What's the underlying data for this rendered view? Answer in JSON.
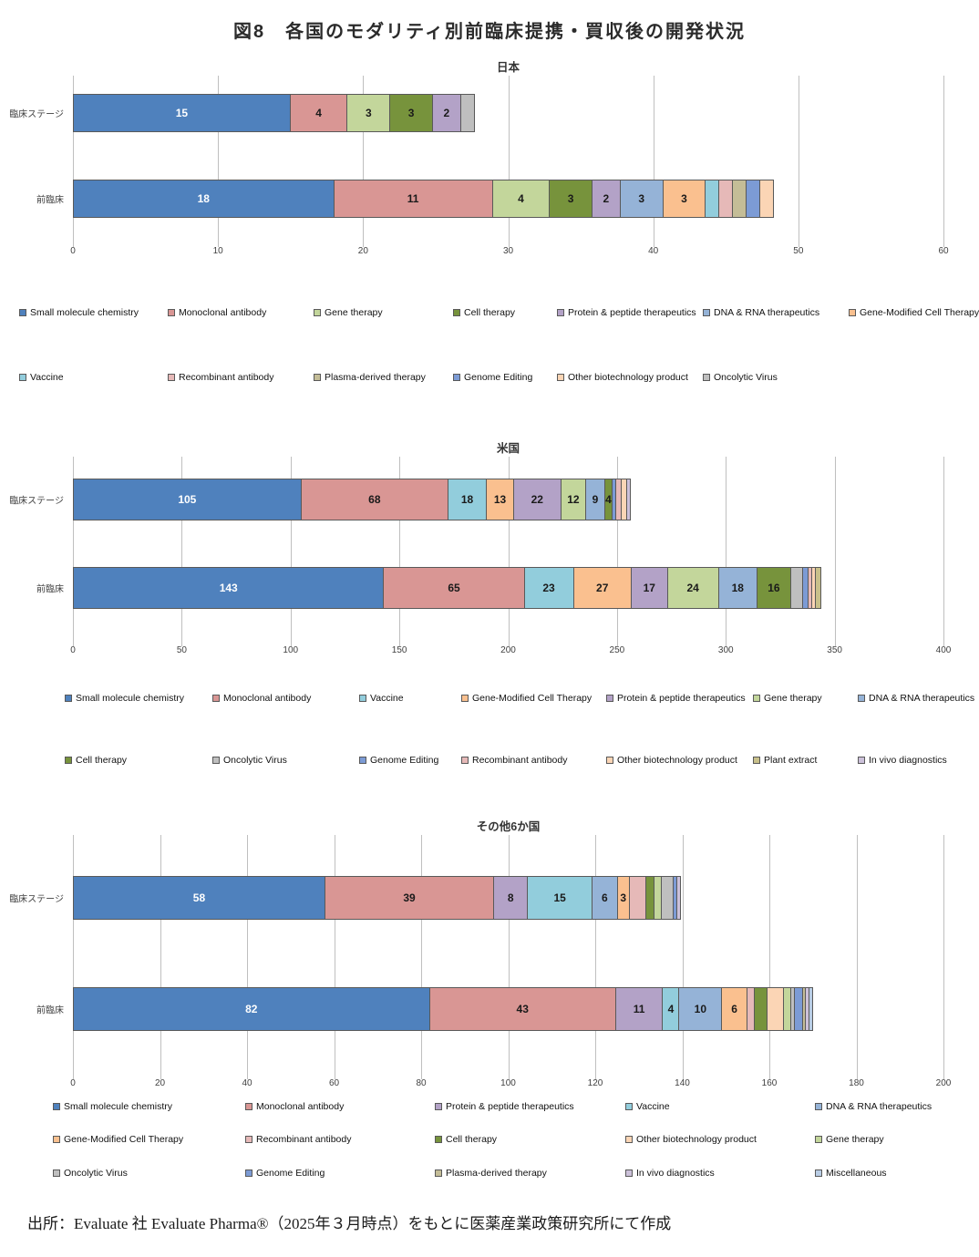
{
  "page": {
    "title": "図8　各国のモダリティ別前臨床提携・買収後の開発状況",
    "source_note": "出所：Evaluate 社 Evaluate Pharma®（2025年３月時点）をもとに医薬産業政策研究所にて作成"
  },
  "colors": {
    "Small molecule chemistry": "#4F81BD",
    "Monoclonal antibody": "#D99694",
    "Gene therapy": "#C3D69B",
    "Cell therapy": "#77933C",
    "Protein & peptide therapeutics": "#B3A2C7",
    "DNA & RNA therapeutics": "#95B3D7",
    "Gene-Modified Cell Therapy": "#FAC08F",
    "Vaccine": "#92CDDC",
    "Recombinant antibody": "#E6B9B8",
    "Plasma-derived therapy": "#C4BD97",
    "Genome Editing": "#7C9BD5",
    "Other biotechnology product": "#FBD5B5",
    "Oncolytic Virus": "#BFBFBF",
    "Plant extract": "#C8C08A",
    "In vivo diagnostics": "#CCC1DA",
    "Miscellaneous": "#B9CDE5"
  },
  "chart_data": [
    {
      "type": "bar",
      "subtype": "horizontal-stacked",
      "title": "日本",
      "axis": {
        "min": 0,
        "max": 60,
        "step": 10,
        "ticks": [
          0,
          10,
          20,
          30,
          40,
          50,
          60
        ]
      },
      "rows": [
        {
          "label": "臨床ステージ",
          "total": 28,
          "segments": [
            {
              "modality": "Small molecule chemistry",
              "value": 15,
              "labeled": true
            },
            {
              "modality": "Monoclonal antibody",
              "value": 4,
              "labeled": true
            },
            {
              "modality": "Gene therapy",
              "value": 3,
              "labeled": true
            },
            {
              "modality": "Cell therapy",
              "value": 3,
              "labeled": true
            },
            {
              "modality": "Protein & peptide therapeutics",
              "value": 2,
              "labeled": true
            },
            {
              "modality": "Oncolytic Virus",
              "value": 1,
              "labeled": false
            }
          ]
        },
        {
          "label": "前臨床",
          "total": 49,
          "segments": [
            {
              "modality": "Small molecule chemistry",
              "value": 18,
              "labeled": true
            },
            {
              "modality": "Monoclonal antibody",
              "value": 11,
              "labeled": true
            },
            {
              "modality": "Gene therapy",
              "value": 4,
              "labeled": true
            },
            {
              "modality": "Cell therapy",
              "value": 3,
              "labeled": true
            },
            {
              "modality": "Protein & peptide therapeutics",
              "value": 2,
              "labeled": true
            },
            {
              "modality": "DNA & RNA therapeutics",
              "value": 3,
              "labeled": true
            },
            {
              "modality": "Gene-Modified Cell Therapy",
              "value": 3,
              "labeled": true
            },
            {
              "modality": "Vaccine",
              "value": 1,
              "labeled": false
            },
            {
              "modality": "Recombinant antibody",
              "value": 1,
              "labeled": false
            },
            {
              "modality": "Plasma-derived therapy",
              "value": 1,
              "labeled": false
            },
            {
              "modality": "Genome Editing",
              "value": 1,
              "labeled": false
            },
            {
              "modality": "Other biotechnology product",
              "value": 1,
              "labeled": false
            }
          ]
        }
      ],
      "legend_rows": [
        [
          "Small molecule chemistry",
          "Monoclonal antibody",
          "Gene therapy",
          "Cell therapy",
          "Protein & peptide therapeutics",
          "DNA & RNA therapeutics",
          "Gene-Modified Cell Therapy"
        ],
        [
          "Vaccine",
          "Recombinant antibody",
          "Plasma-derived therapy",
          "Genome Editing",
          "Other biotechnology product",
          "Oncolytic Virus"
        ]
      ]
    },
    {
      "type": "bar",
      "subtype": "horizontal-stacked",
      "title": "米国",
      "axis": {
        "min": 0,
        "max": 400,
        "step": 50,
        "ticks": [
          0,
          50,
          100,
          150,
          200,
          250,
          300,
          350,
          400
        ]
      },
      "rows": [
        {
          "label": "臨床ステージ",
          "total": 261,
          "segments": [
            {
              "modality": "Small molecule chemistry",
              "value": 105,
              "labeled": true
            },
            {
              "modality": "Monoclonal antibody",
              "value": 68,
              "labeled": true
            },
            {
              "modality": "Vaccine",
              "value": 18,
              "labeled": true
            },
            {
              "modality": "Gene-Modified Cell Therapy",
              "value": 13,
              "labeled": true
            },
            {
              "modality": "Protein & peptide therapeutics",
              "value": 22,
              "labeled": true
            },
            {
              "modality": "Gene therapy",
              "value": 12,
              "labeled": true
            },
            {
              "modality": "DNA & RNA therapeutics",
              "value": 9,
              "labeled": true
            },
            {
              "modality": "Cell therapy",
              "value": 4,
              "labeled": true
            },
            {
              "modality": "Genome Editing",
              "value": 2,
              "labeled": false
            },
            {
              "modality": "Recombinant antibody",
              "value": 3,
              "labeled": false
            },
            {
              "modality": "Other biotechnology product",
              "value": 3,
              "labeled": false
            },
            {
              "modality": "In vivo diagnostics",
              "value": 2,
              "labeled": false
            }
          ]
        },
        {
          "label": "前臨床",
          "total": 349,
          "segments": [
            {
              "modality": "Small molecule chemistry",
              "value": 143,
              "labeled": true
            },
            {
              "modality": "Monoclonal antibody",
              "value": 65,
              "labeled": true
            },
            {
              "modality": "Vaccine",
              "value": 23,
              "labeled": true
            },
            {
              "modality": "Gene-Modified Cell Therapy",
              "value": 27,
              "labeled": true
            },
            {
              "modality": "Protein & peptide therapeutics",
              "value": 17,
              "labeled": true
            },
            {
              "modality": "Gene therapy",
              "value": 24,
              "labeled": true
            },
            {
              "modality": "DNA & RNA therapeutics",
              "value": 18,
              "labeled": true
            },
            {
              "modality": "Cell therapy",
              "value": 16,
              "labeled": true
            },
            {
              "modality": "Oncolytic Virus",
              "value": 6,
              "labeled": false
            },
            {
              "modality": "Genome Editing",
              "value": 3,
              "labeled": false
            },
            {
              "modality": "Recombinant antibody",
              "value": 2,
              "labeled": false
            },
            {
              "modality": "Other biotechnology product",
              "value": 2,
              "labeled": false
            },
            {
              "modality": "Plant extract",
              "value": 3,
              "labeled": false
            }
          ]
        }
      ],
      "legend_rows": [
        [
          "Small molecule chemistry",
          "Monoclonal antibody",
          "Vaccine",
          "Gene-Modified Cell Therapy",
          "Protein & peptide therapeutics",
          "Gene therapy",
          "DNA & RNA therapeutics"
        ],
        [
          "Cell therapy",
          "Oncolytic Virus",
          "Genome Editing",
          "Recombinant antibody",
          "Other biotechnology product",
          "Plant extract",
          "In vivo diagnostics"
        ]
      ]
    },
    {
      "type": "bar",
      "subtype": "horizontal-stacked",
      "title": "その他6か国",
      "axis": {
        "min": 0,
        "max": 200,
        "step": 20,
        "ticks": [
          0,
          20,
          40,
          60,
          80,
          100,
          120,
          140,
          160,
          180,
          200
        ]
      },
      "rows": [
        {
          "label": "臨床ステージ",
          "total": 142,
          "segments": [
            {
              "modality": "Small molecule chemistry",
              "value": 58,
              "labeled": true
            },
            {
              "modality": "Monoclonal antibody",
              "value": 39,
              "labeled": true
            },
            {
              "modality": "Protein & peptide therapeutics",
              "value": 8,
              "labeled": true
            },
            {
              "modality": "Vaccine",
              "value": 15,
              "labeled": true
            },
            {
              "modality": "DNA & RNA therapeutics",
              "value": 6,
              "labeled": true
            },
            {
              "modality": "Gene-Modified Cell Therapy",
              "value": 3,
              "labeled": true
            },
            {
              "modality": "Recombinant antibody",
              "value": 4,
              "labeled": false
            },
            {
              "modality": "Cell therapy",
              "value": 2,
              "labeled": false
            },
            {
              "modality": "Gene therapy",
              "value": 2,
              "labeled": false
            },
            {
              "modality": "Oncolytic Virus",
              "value": 3,
              "labeled": false
            },
            {
              "modality": "Genome Editing",
              "value": 1,
              "labeled": false
            },
            {
              "modality": "In vivo diagnostics",
              "value": 1,
              "labeled": false
            }
          ]
        },
        {
          "label": "前臨床",
          "total": 173,
          "segments": [
            {
              "modality": "Small molecule chemistry",
              "value": 82,
              "labeled": true
            },
            {
              "modality": "Monoclonal antibody",
              "value": 43,
              "labeled": true
            },
            {
              "modality": "Protein & peptide therapeutics",
              "value": 11,
              "labeled": true
            },
            {
              "modality": "Vaccine",
              "value": 4,
              "labeled": true
            },
            {
              "modality": "DNA & RNA therapeutics",
              "value": 10,
              "labeled": true
            },
            {
              "modality": "Gene-Modified Cell Therapy",
              "value": 6,
              "labeled": true
            },
            {
              "modality": "Recombinant antibody",
              "value": 2,
              "labeled": false
            },
            {
              "modality": "Cell therapy",
              "value": 3,
              "labeled": false
            },
            {
              "modality": "Other biotechnology product",
              "value": 4,
              "labeled": false
            },
            {
              "modality": "Gene therapy",
              "value": 2,
              "labeled": false
            },
            {
              "modality": "Oncolytic Virus",
              "value": 1,
              "labeled": false
            },
            {
              "modality": "Genome Editing",
              "value": 2,
              "labeled": false
            },
            {
              "modality": "Plasma-derived therapy",
              "value": 1,
              "labeled": false
            },
            {
              "modality": "In vivo diagnostics",
              "value": 1,
              "labeled": false
            },
            {
              "modality": "Miscellaneous",
              "value": 1,
              "labeled": false
            }
          ]
        }
      ],
      "legend_rows": [
        [
          "Small molecule chemistry",
          "Monoclonal antibody",
          "Protein & peptide therapeutics",
          "Vaccine",
          "DNA & RNA therapeutics"
        ],
        [
          "Gene-Modified Cell Therapy",
          "Recombinant antibody",
          "Cell therapy",
          "Other biotechnology product",
          "Gene therapy"
        ],
        [
          "Oncolytic Virus",
          "Genome Editing",
          "Plasma-derived therapy",
          "In vivo diagnostics",
          "Miscellaneous"
        ]
      ]
    }
  ]
}
